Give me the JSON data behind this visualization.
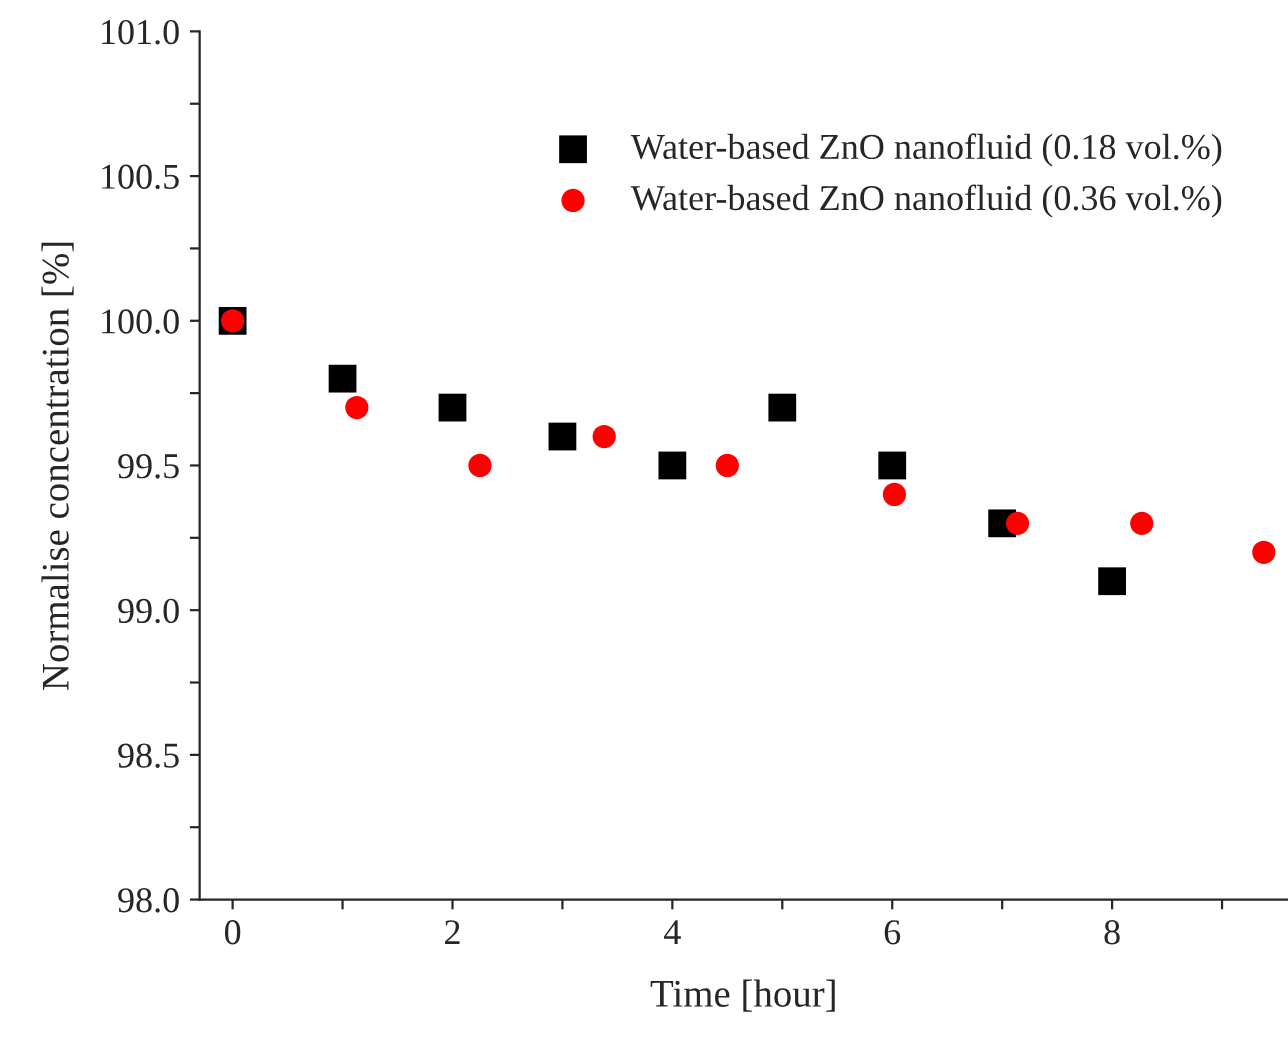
{
  "chart_data": {
    "type": "scatter",
    "xlabel": "Time [hour]",
    "ylabel": "Normalise concentration [%]",
    "series": [
      {
        "name": "Water-based ZnO nanofluid (0.18 vol.%)",
        "color": "#000000",
        "marker": "square",
        "x": [
          0,
          1,
          2,
          3,
          4,
          5,
          6,
          7,
          8
        ],
        "values": [
          100.0,
          99.8,
          99.7,
          99.6,
          99.5,
          99.7,
          99.5,
          99.3,
          99.1
        ]
      },
      {
        "name": "Water-based ZnO nanofluid (0.36 vol.%)",
        "color": "#ff0000",
        "marker": "circle",
        "x": [
          0,
          1.13,
          2.25,
          3.38,
          4.5,
          6.02,
          7.14,
          8.27,
          9.38
        ],
        "values": [
          100.0,
          99.7,
          99.5,
          99.6,
          99.5,
          99.4,
          99.3,
          99.3,
          99.2
        ]
      }
    ],
    "xlim": [
      -0.3,
      9.6
    ],
    "ylim": [
      98.0,
      101.0
    ],
    "xticks": [
      0,
      {
        "value": 1,
        "label": null
      },
      2,
      {
        "value": 3,
        "label": null
      },
      4,
      {
        "value": 5,
        "label": null
      },
      6,
      {
        "value": 7,
        "label": null
      },
      8,
      {
        "value": 9,
        "label": null
      }
    ],
    "yticks": [
      {
        "value": 98.0,
        "label": "98.0"
      },
      {
        "value": 98.25,
        "label": null
      },
      {
        "value": 98.5,
        "label": "98.5"
      },
      {
        "value": 98.75,
        "label": null
      },
      {
        "value": 99.0,
        "label": "99.0"
      },
      {
        "value": 99.25,
        "label": null
      },
      {
        "value": 99.5,
        "label": "99.5"
      },
      {
        "value": 99.75,
        "label": null
      },
      {
        "value": 100.0,
        "label": "100.0"
      },
      {
        "value": 100.25,
        "label": null
      },
      {
        "value": 100.5,
        "label": "100.5"
      },
      {
        "value": 100.75,
        "label": null
      },
      {
        "value": 101.0,
        "label": "101.0"
      }
    ],
    "grid": false,
    "legend": "top right"
  }
}
